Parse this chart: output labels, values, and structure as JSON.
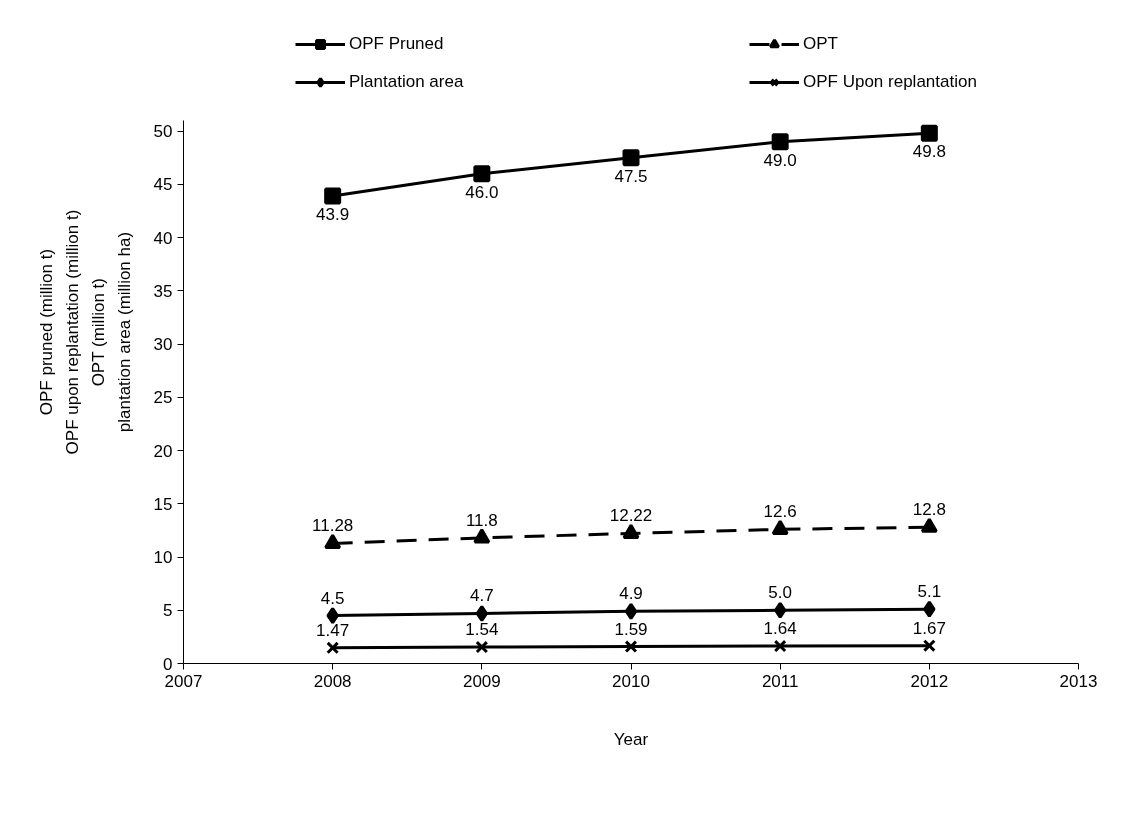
{
  "chart_data": {
    "type": "line",
    "xlabel": "Year",
    "ylabel": "OPF pruned (million t)\nOPF upon replantation (million t)\nOPT (million t)\nplantation area (million ha)",
    "x": [
      2008,
      2009,
      2010,
      2011,
      2012
    ],
    "xlim": [
      2007,
      2013
    ],
    "xticks": [
      2007,
      2008,
      2009,
      2010,
      2011,
      2012,
      2013
    ],
    "ylim": [
      0,
      51
    ],
    "yticks": [
      0,
      5,
      10,
      15,
      20,
      25,
      30,
      35,
      40,
      45,
      50
    ],
    "grid": false,
    "legend": "top",
    "series": [
      {
        "name": "OPF Pruned",
        "color": "#000000",
        "marker": "square",
        "line_style": "solid",
        "values": [
          43.9,
          46.0,
          47.5,
          49.0,
          49.8
        ],
        "value_labels": [
          "43.9",
          "46.0",
          "47.5",
          "49.0",
          "49.8"
        ]
      },
      {
        "name": "OPT",
        "color": "#000000",
        "marker": "triangle",
        "line_style": "dashed",
        "values": [
          11.28,
          11.8,
          12.22,
          12.6,
          12.8
        ],
        "value_labels": [
          "11.28",
          "11.8",
          "12.22",
          "12.6",
          "12.8"
        ]
      },
      {
        "name": "Plantation area",
        "color": "#000000",
        "marker": "diamond",
        "line_style": "solid",
        "values": [
          4.5,
          4.7,
          4.9,
          5.0,
          5.1
        ],
        "value_labels": [
          "4.5",
          "4.7",
          "4.9",
          "5.0",
          "5.1"
        ]
      },
      {
        "name": "OPF Upon replantation",
        "color": "#000000",
        "marker": "cross",
        "line_style": "solid",
        "values": [
          1.47,
          1.54,
          1.59,
          1.64,
          1.67
        ],
        "value_labels": [
          "1.47",
          "1.54",
          "1.59",
          "1.64",
          "1.67"
        ]
      }
    ]
  }
}
